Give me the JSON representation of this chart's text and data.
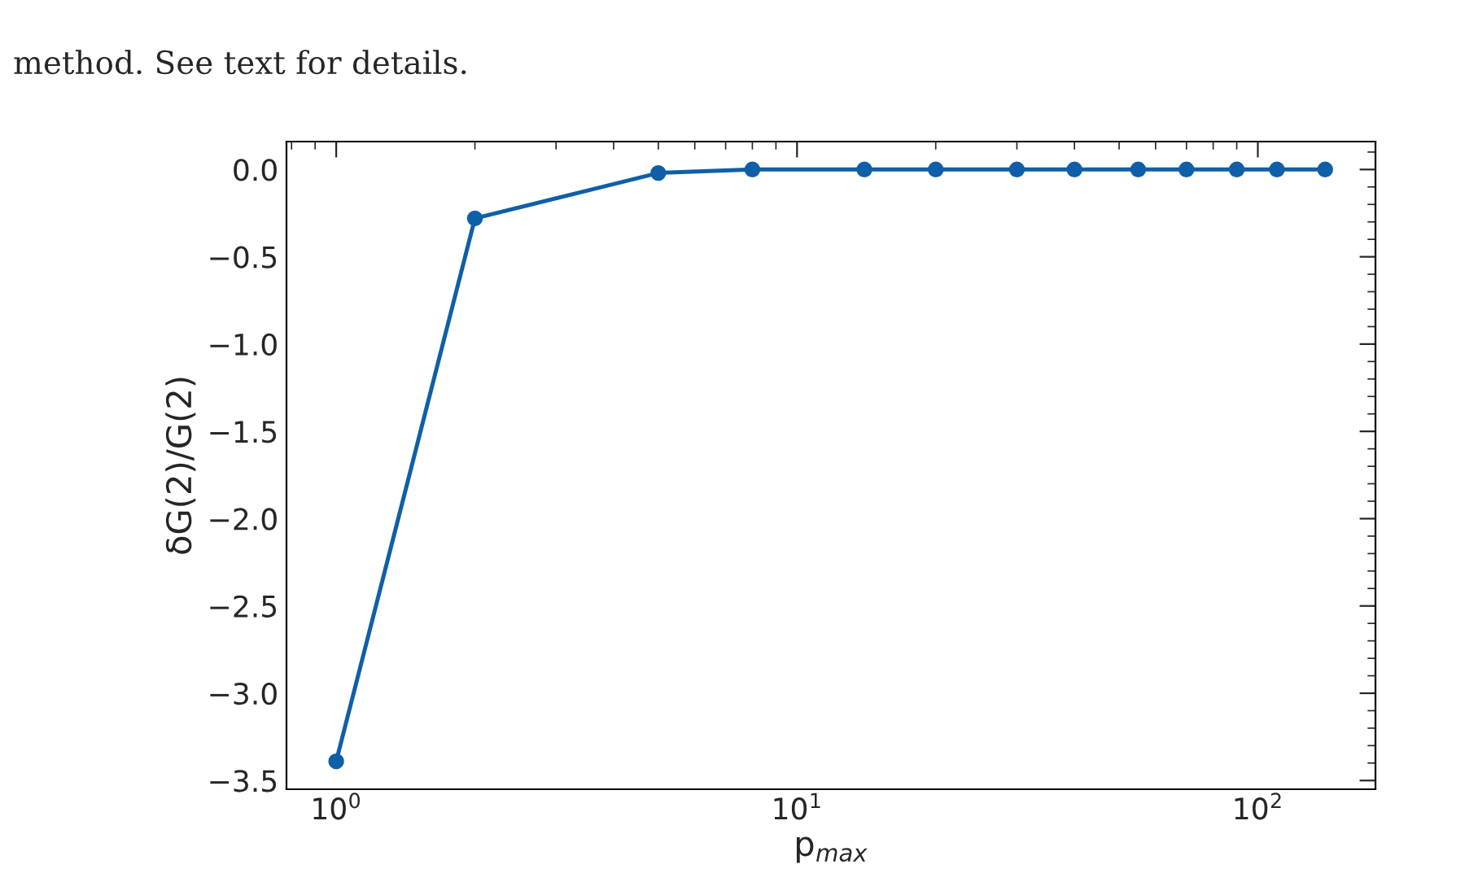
{
  "chart_data": {
    "type": "line",
    "xlabel": "p$_{max}$",
    "ylabel": "δG(2)/G(2)",
    "annotations": [
      "method. See text for details."
    ],
    "x": [
      1,
      2,
      5,
      8,
      14,
      20,
      30,
      40,
      55,
      70,
      90,
      110,
      140
    ],
    "series": [
      {
        "color": "#0f5fa8",
        "values": [
          -3.39,
          -0.28,
          -0.02,
          0,
          0,
          0,
          0,
          0,
          0,
          0,
          0,
          0,
          0
        ]
      }
    ],
    "log": "x",
    "marker": "circle",
    "line_style": "solid",
    "grid": false,
    "legend": false,
    "xlim": [
      0.78,
      180
    ],
    "xticks": [
      {
        "value": 1,
        "label": "10$^{0}$"
      },
      {
        "value": 10,
        "label": "10$^{1}$"
      },
      {
        "value": 100,
        "label": "10$^{2}$"
      }
    ],
    "ylim": [
      -3.55,
      0.16
    ],
    "yticks": [
      {
        "value": 0,
        "label": "0.0"
      },
      {
        "value": -0.5,
        "label": "−0.5"
      },
      {
        "value": -1,
        "label": "−1.0"
      },
      {
        "value": -1.5,
        "label": "−1.5"
      },
      {
        "value": -2,
        "label": "−2.0"
      },
      {
        "value": -2.5,
        "label": "−2.5"
      },
      {
        "value": -3,
        "label": "−3.0"
      },
      {
        "value": -3.5,
        "label": "−3.5"
      }
    ]
  }
}
